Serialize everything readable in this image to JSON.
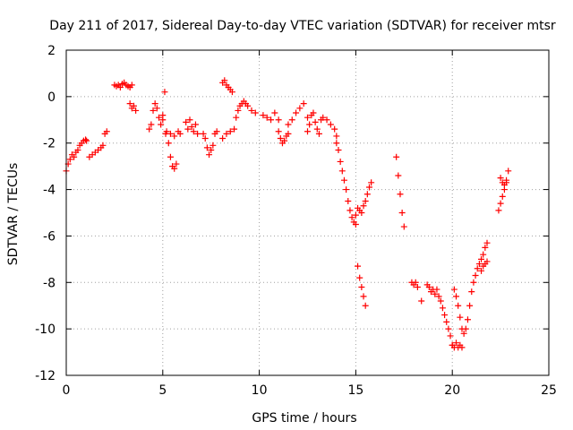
{
  "chart_data": {
    "type": "scatter",
    "title": "Day 211 of 2017, Sidereal Day-to-day VTEC variation (SDTVAR) for receiver mtsr",
    "xlabel": "GPS time / hours",
    "ylabel": "SDTVAR / TECUs",
    "xlim": [
      0,
      25
    ],
    "ylim": [
      -12,
      2
    ],
    "xticks": [
      0,
      5,
      10,
      15,
      20,
      25
    ],
    "yticks": [
      -12,
      -10,
      -8,
      -6,
      -4,
      -2,
      0,
      2
    ],
    "grid": true,
    "marker": "+",
    "color": "#ff0000",
    "series": [
      {
        "name": "SDTVAR",
        "segments": [
          {
            "x": [
              0.0,
              0.1,
              0.2,
              0.3,
              0.4,
              0.5
            ],
            "y": [
              -3.2,
              -2.9,
              -2.7,
              -2.5,
              -2.6,
              -2.4
            ]
          },
          {
            "x": [
              0.6,
              0.7,
              0.8,
              0.9,
              1.0,
              1.05
            ],
            "y": [
              -2.3,
              -2.1,
              -2.0,
              -1.9,
              -1.85,
              -1.9
            ]
          },
          {
            "x": [
              1.2,
              1.35,
              1.5,
              1.65,
              1.8,
              1.9
            ],
            "y": [
              -2.6,
              -2.5,
              -2.4,
              -2.3,
              -2.2,
              -2.1
            ]
          },
          {
            "x": [
              2.0,
              2.1
            ],
            "y": [
              -1.6,
              -1.5
            ]
          },
          {
            "x": [
              2.5,
              2.6,
              2.7,
              2.8,
              2.9,
              3.0,
              3.1,
              3.2,
              3.3,
              3.4
            ],
            "y": [
              0.5,
              0.45,
              0.5,
              0.4,
              0.55,
              0.6,
              0.5,
              0.45,
              0.4,
              0.5
            ]
          },
          {
            "x": [
              3.3,
              3.4,
              3.5,
              3.6
            ],
            "y": [
              -0.3,
              -0.5,
              -0.4,
              -0.6
            ]
          },
          {
            "x": [
              4.3,
              4.4,
              4.5,
              4.6,
              4.7,
              4.8,
              4.9,
              5.0,
              5.1
            ],
            "y": [
              -1.4,
              -1.2,
              -0.6,
              -0.3,
              -0.5,
              -0.9,
              -1.2,
              -0.8,
              0.2
            ]
          },
          {
            "x": [
              5.0,
              5.15,
              5.3,
              5.4,
              5.5,
              5.6,
              5.7
            ],
            "y": [
              -1.0,
              -1.6,
              -2.0,
              -2.6,
              -3.0,
              -3.1,
              -2.9
            ]
          },
          {
            "x": [
              5.2,
              5.4,
              5.6,
              5.8,
              5.9
            ],
            "y": [
              -1.5,
              -1.6,
              -1.7,
              -1.5,
              -1.6
            ]
          },
          {
            "x": [
              6.2,
              6.3,
              6.4,
              6.5,
              6.6,
              6.7,
              6.8
            ],
            "y": [
              -1.1,
              -1.4,
              -1.0,
              -1.3,
              -1.5,
              -1.2,
              -1.6
            ]
          },
          {
            "x": [
              7.1,
              7.2,
              7.3,
              7.4,
              7.5,
              7.6,
              7.7,
              7.8
            ],
            "y": [
              -1.6,
              -1.8,
              -2.2,
              -2.5,
              -2.3,
              -2.1,
              -1.6,
              -1.5
            ]
          },
          {
            "x": [
              8.1,
              8.2,
              8.3,
              8.4,
              8.5,
              8.6
            ],
            "y": [
              0.6,
              0.7,
              0.5,
              0.4,
              0.3,
              0.2
            ]
          },
          {
            "x": [
              8.1,
              8.3,
              8.5,
              8.7
            ],
            "y": [
              -1.8,
              -1.6,
              -1.5,
              -1.4
            ]
          },
          {
            "x": [
              8.8,
              8.9,
              9.0,
              9.1,
              9.2,
              9.3,
              9.4,
              9.6,
              9.8
            ],
            "y": [
              -0.9,
              -0.6,
              -0.4,
              -0.3,
              -0.2,
              -0.3,
              -0.4,
              -0.6,
              -0.7
            ]
          },
          {
            "x": [
              10.2,
              10.4,
              10.6,
              10.8,
              11.0
            ],
            "y": [
              -0.8,
              -0.9,
              -1.0,
              -0.7,
              -1.0
            ]
          },
          {
            "x": [
              11.0,
              11.1,
              11.2,
              11.3,
              11.4,
              11.5
            ],
            "y": [
              -1.5,
              -1.8,
              -2.0,
              -1.9,
              -1.7,
              -1.6
            ]
          },
          {
            "x": [
              11.5,
              11.7,
              11.9,
              12.1,
              12.3,
              12.5
            ],
            "y": [
              -1.2,
              -1.0,
              -0.7,
              -0.5,
              -0.3,
              -0.9
            ]
          },
          {
            "x": [
              12.5,
              12.6,
              12.7,
              12.8,
              12.9,
              13.0,
              13.1,
              13.2
            ],
            "y": [
              -1.5,
              -1.2,
              -0.8,
              -0.7,
              -1.1,
              -1.4,
              -1.6,
              -1.0
            ]
          },
          {
            "x": [
              13.3,
              13.5,
              13.7,
              13.9,
              14.0
            ],
            "y": [
              -0.9,
              -1.0,
              -1.2,
              -1.4,
              -1.7
            ]
          },
          {
            "x": [
              14.0,
              14.1,
              14.2,
              14.3,
              14.4,
              14.5,
              14.6,
              14.7,
              14.8,
              14.9,
              15.0
            ],
            "y": [
              -2.0,
              -2.3,
              -2.8,
              -3.2,
              -3.6,
              -4.0,
              -4.5,
              -4.9,
              -5.2,
              -5.4,
              -5.5
            ]
          },
          {
            "x": [
              15.0,
              15.1,
              15.2,
              15.3,
              15.4,
              15.5,
              15.6,
              15.7,
              15.8
            ],
            "y": [
              -5.1,
              -4.8,
              -4.9,
              -5.0,
              -4.7,
              -4.5,
              -4.2,
              -3.9,
              -3.7
            ]
          },
          {
            "x": [
              15.1,
              15.2,
              15.3,
              15.4,
              15.5
            ],
            "y": [
              -7.3,
              -7.8,
              -8.2,
              -8.6,
              -9.0
            ]
          },
          {
            "x": [
              17.1,
              17.2,
              17.3,
              17.4,
              17.5
            ],
            "y": [
              -2.6,
              -3.4,
              -4.2,
              -5.0,
              -5.6
            ]
          },
          {
            "x": [
              17.9,
              18.0,
              18.1,
              18.2,
              18.4
            ],
            "y": [
              -8.0,
              -8.1,
              -8.0,
              -8.2,
              -8.8
            ]
          },
          {
            "x": [
              18.7,
              18.8,
              18.9,
              19.0,
              19.1,
              19.2,
              19.3,
              19.4,
              19.5,
              19.6,
              19.7,
              19.8,
              19.9,
              20.0
            ],
            "y": [
              -8.1,
              -8.2,
              -8.4,
              -8.3,
              -8.5,
              -8.3,
              -8.6,
              -8.8,
              -9.1,
              -9.4,
              -9.7,
              -10.0,
              -10.3,
              -10.7
            ]
          },
          {
            "x": [
              20.0,
              20.1,
              20.2,
              20.3,
              20.4,
              20.5
            ],
            "y": [
              -10.7,
              -10.8,
              -10.6,
              -10.8,
              -10.7,
              -10.8
            ]
          },
          {
            "x": [
              20.1,
              20.2,
              20.3,
              20.4,
              20.5,
              20.6,
              20.7,
              20.8,
              20.9,
              21.0,
              21.1
            ],
            "y": [
              -8.3,
              -8.6,
              -9.0,
              -9.5,
              -10.0,
              -10.2,
              -10.0,
              -9.6,
              -9.0,
              -8.4,
              -8.0
            ]
          },
          {
            "x": [
              21.2,
              21.3,
              21.4,
              21.5,
              21.6,
              21.7,
              21.8
            ],
            "y": [
              -7.7,
              -7.4,
              -7.2,
              -7.0,
              -6.8,
              -6.5,
              -6.3
            ]
          },
          {
            "x": [
              21.5,
              21.6,
              21.7,
              21.8
            ],
            "y": [
              -7.5,
              -7.3,
              -7.2,
              -7.1
            ]
          },
          {
            "x": [
              22.4,
              22.5,
              22.6,
              22.7,
              22.8,
              22.9
            ],
            "y": [
              -4.9,
              -4.6,
              -4.3,
              -4.0,
              -3.6,
              -3.2
            ]
          },
          {
            "x": [
              22.5,
              22.6,
              22.7,
              22.8
            ],
            "y": [
              -3.5,
              -3.7,
              -3.8,
              -3.7
            ]
          }
        ]
      }
    ]
  }
}
